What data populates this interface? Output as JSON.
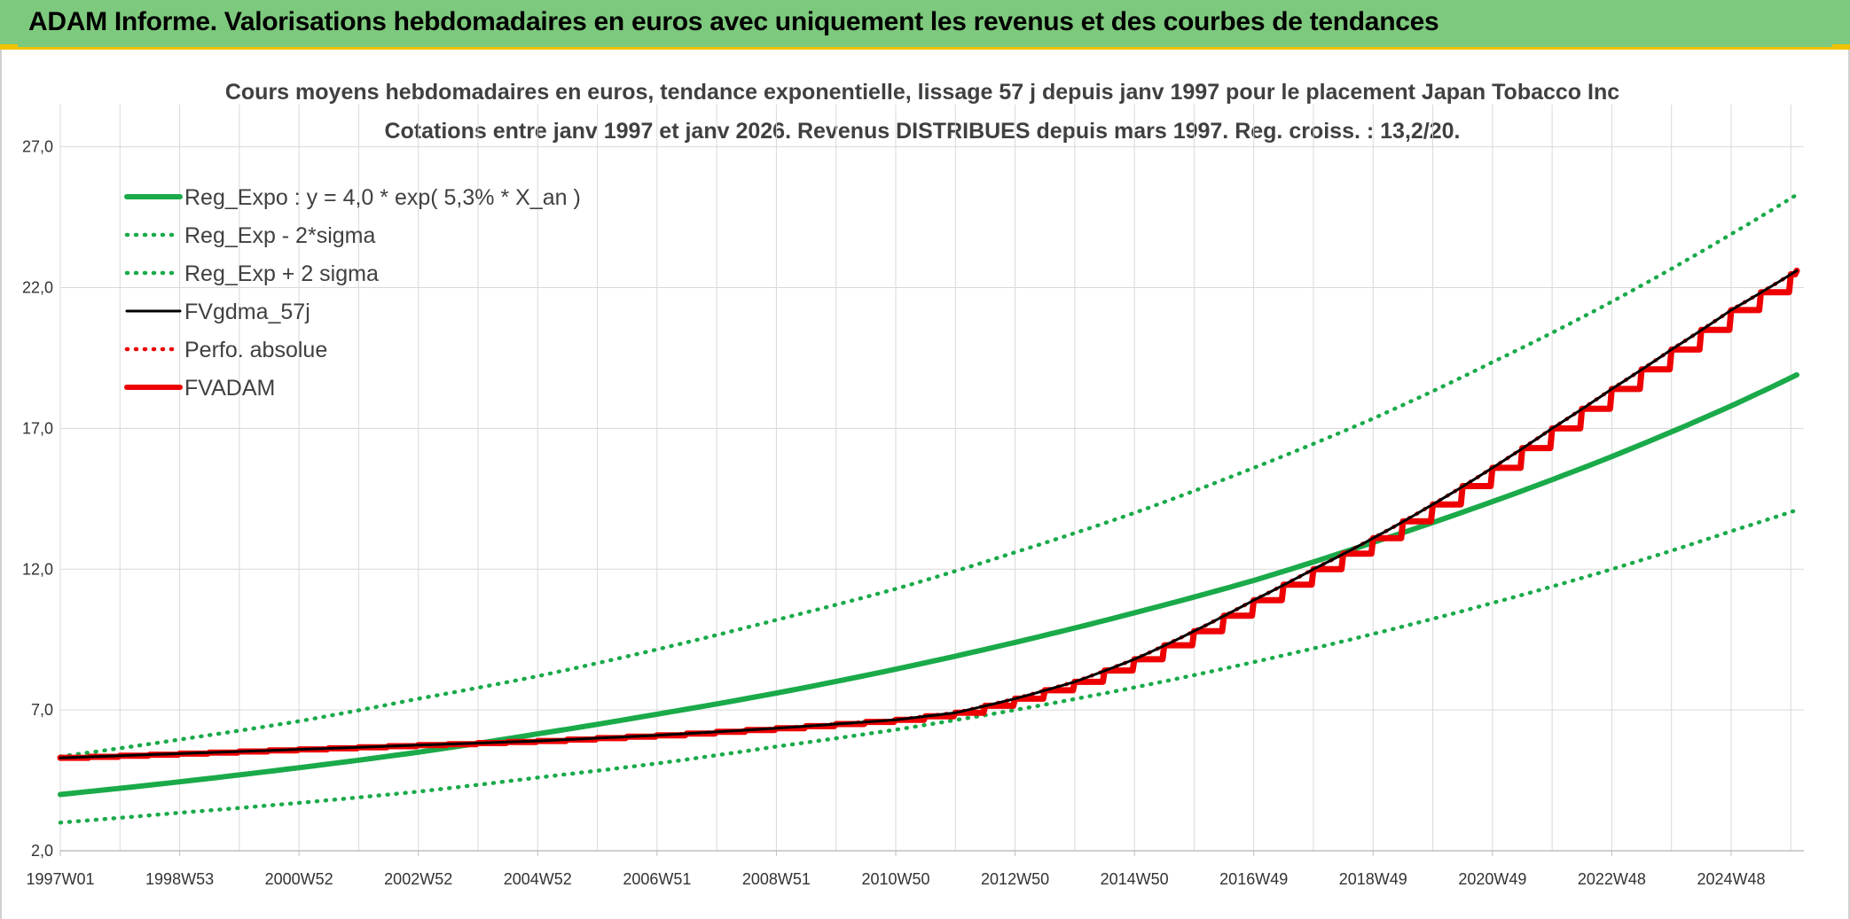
{
  "banner": {
    "title": "ADAM Informe. Valorisations hebdomadaires en euros avec uniquement les revenus et des courbes de tendances"
  },
  "colors": {
    "banner_bg": "#7dc97d",
    "accent": "#f2c200",
    "trend_green": "#1aaa4a",
    "fvgdma_black": "#000000",
    "fvadam_red": "#ee0000",
    "grid": "#d9d9d9"
  },
  "chart_data": {
    "type": "line",
    "title": "Cours moyens hebdomadaires en euros, tendance exponentielle, lissage 57 j depuis janv 1997 pour le placement Japan Tobacco Inc",
    "subtitle": "Cotations entre janv 1997 et janv 2026. Revenus DISTRIBUES depuis mars 1997. Reg. croiss. : 13,2/20.",
    "xlabel": "",
    "ylabel": "",
    "x_range_years": [
      1997.0,
      2026.1
    ],
    "ylim": [
      2.0,
      28.5
    ],
    "y_ticks": [
      2.0,
      7.0,
      12.0,
      17.0,
      22.0,
      27.0
    ],
    "y_tick_labels": [
      "2,0",
      "7,0",
      "12,0",
      "17,0",
      "22,0",
      "27,0"
    ],
    "x_tick_labels": [
      "1997W01",
      "1998W53",
      "2000W52",
      "2002W52",
      "2004W52",
      "2006W51",
      "2008W51",
      "2010W50",
      "2012W50",
      "2014W50",
      "2016W49",
      "2018W49",
      "2020W49",
      "2022W48",
      "2024W48"
    ],
    "x_tick_years": [
      1997.0,
      1999.0,
      2001.0,
      2003.0,
      2005.0,
      2007.0,
      2009.0,
      2011.0,
      2013.0,
      2015.0,
      2017.0,
      2019.0,
      2021.0,
      2023.0,
      2025.0
    ],
    "legend_position": "top-left",
    "series": [
      {
        "name": "Reg_Expo : y = 4,0 * exp( 5,3% *  X_an )",
        "style": "solid-thick",
        "color": "#1aaa4a",
        "x": [
          1997,
          1999,
          2001,
          2003,
          2005,
          2007,
          2009,
          2011,
          2013,
          2015,
          2017,
          2019,
          2021,
          2023,
          2025,
          2026.1
        ],
        "values": [
          4.0,
          4.45,
          4.95,
          5.5,
          6.15,
          6.85,
          7.6,
          8.45,
          9.4,
          10.45,
          11.6,
          12.95,
          14.4,
          16.0,
          17.8,
          18.9
        ]
      },
      {
        "name": "Reg_Exp - 2*sigma",
        "style": "dotted",
        "color": "#1aaa4a",
        "x": [
          1997,
          1999,
          2001,
          2003,
          2005,
          2007,
          2009,
          2011,
          2013,
          2015,
          2017,
          2019,
          2021,
          2023,
          2025,
          2026.1
        ],
        "values": [
          3.0,
          3.35,
          3.7,
          4.1,
          4.6,
          5.1,
          5.7,
          6.3,
          7.0,
          7.8,
          8.7,
          9.7,
          10.8,
          12.0,
          13.35,
          14.1
        ]
      },
      {
        "name": "Reg_Exp + 2 sigma",
        "style": "dotted",
        "color": "#1aaa4a",
        "x": [
          1997,
          1999,
          2001,
          2003,
          2005,
          2007,
          2009,
          2011,
          2013,
          2015,
          2017,
          2019,
          2021,
          2023,
          2025,
          2026.1
        ],
        "values": [
          5.35,
          5.95,
          6.6,
          7.4,
          8.2,
          9.15,
          10.2,
          11.3,
          12.6,
          14.0,
          15.6,
          17.35,
          19.35,
          21.5,
          23.9,
          25.3
        ]
      },
      {
        "name": "FVgdma_57j",
        "style": "solid",
        "color": "#000000",
        "x": [
          1997,
          1999,
          2001,
          2003,
          2005,
          2007,
          2009,
          2010,
          2011,
          2012,
          2013,
          2014,
          2015,
          2016,
          2017,
          2018,
          2019,
          2020,
          2021,
          2022,
          2023,
          2024,
          2025,
          2026.1
        ],
        "values": [
          5.3,
          5.45,
          5.6,
          5.75,
          5.9,
          6.1,
          6.35,
          6.5,
          6.65,
          6.9,
          7.4,
          8.0,
          8.8,
          9.8,
          10.9,
          12.0,
          13.1,
          14.3,
          15.6,
          17.0,
          18.4,
          19.8,
          21.2,
          22.6
        ]
      },
      {
        "name": "Perfo. absolue",
        "style": "dotted",
        "color": "#ee0000",
        "x": [
          1997,
          1999,
          2001,
          2003,
          2005,
          2007,
          2009,
          2010,
          2011,
          2012,
          2013,
          2014,
          2015,
          2016,
          2017,
          2018,
          2019,
          2020,
          2021,
          2022,
          2023,
          2024,
          2025,
          2026.1
        ],
        "values": [
          5.3,
          5.45,
          5.6,
          5.75,
          5.9,
          6.1,
          6.35,
          6.5,
          6.65,
          6.9,
          7.4,
          8.0,
          8.8,
          9.8,
          10.9,
          12.0,
          13.1,
          14.3,
          15.6,
          17.0,
          18.4,
          19.8,
          21.2,
          22.6
        ]
      },
      {
        "name": "FVADAM",
        "style": "solid-thick-step",
        "color": "#ee0000",
        "x": [
          1997,
          1999,
          2001,
          2003,
          2005,
          2007,
          2009,
          2010,
          2011,
          2012,
          2013,
          2014,
          2015,
          2016,
          2017,
          2018,
          2019,
          2020,
          2021,
          2022,
          2023,
          2024,
          2025,
          2026.1
        ],
        "values": [
          5.3,
          5.45,
          5.6,
          5.75,
          5.9,
          6.1,
          6.35,
          6.5,
          6.65,
          6.9,
          7.4,
          8.0,
          8.8,
          9.8,
          10.9,
          12.0,
          13.1,
          14.3,
          15.6,
          17.0,
          18.4,
          19.8,
          21.2,
          22.6
        ]
      }
    ]
  }
}
